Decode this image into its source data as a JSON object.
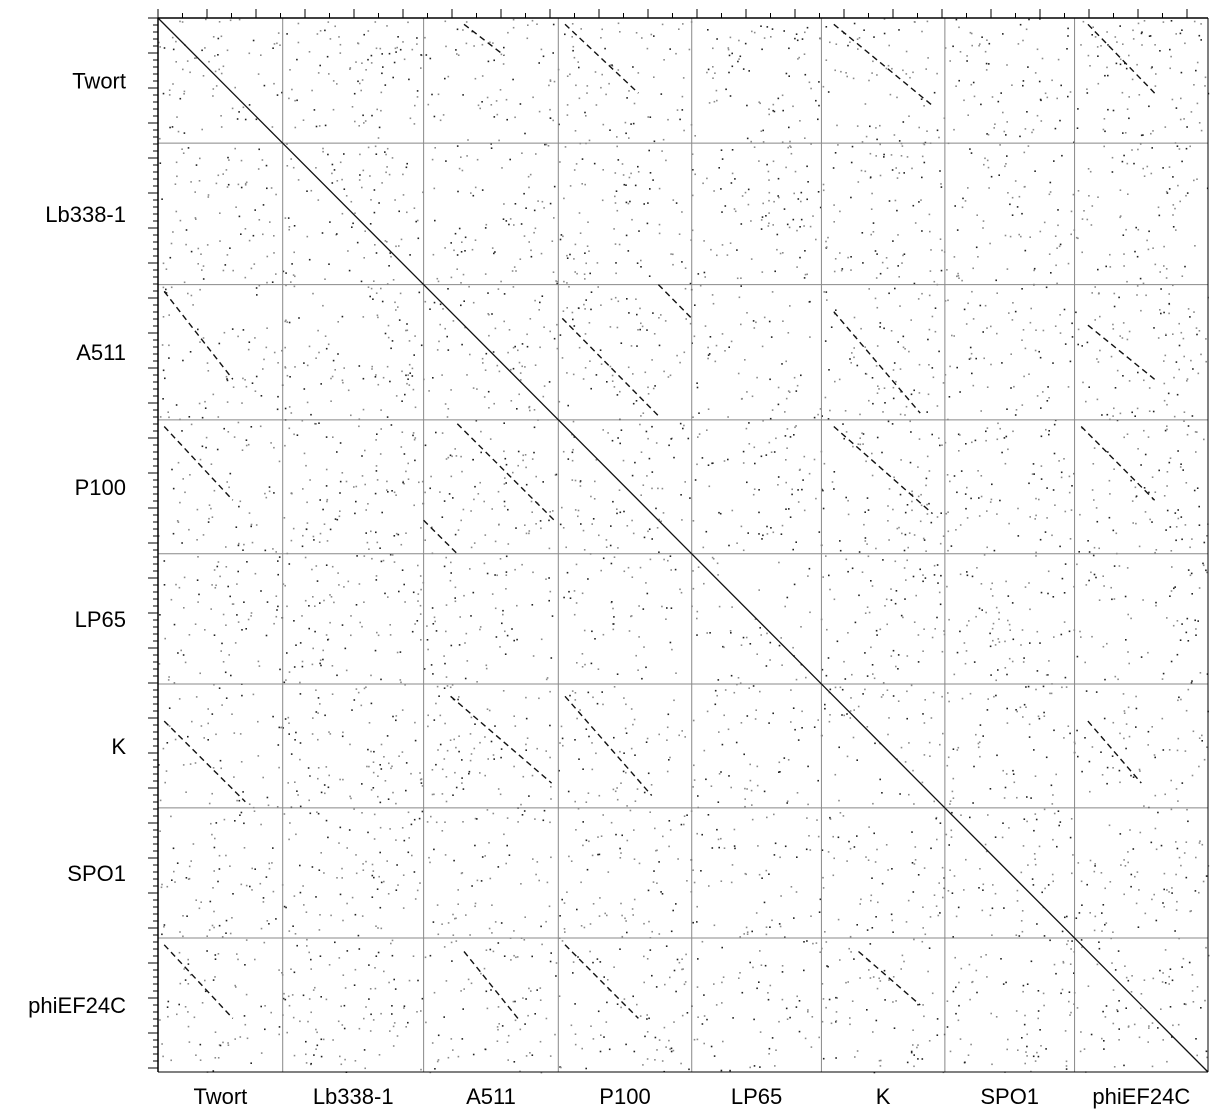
{
  "chart_data": {
    "type": "scatter",
    "title": "",
    "xlabel": "",
    "ylabel": "",
    "grid": true,
    "legend": "none",
    "genomes": [
      "Twort",
      "Lb338-1",
      "A511",
      "P100",
      "LP65",
      "K",
      "SPO1",
      "phiEF24C"
    ],
    "x_tick_labels": [
      "Twort",
      "Lb338-1",
      "A511",
      "P100",
      "LP65",
      "K",
      "SPO1",
      "phiEF24C"
    ],
    "y_tick_labels": [
      "Twort",
      "Lb338-1",
      "A511",
      "P100",
      "LP65",
      "K",
      "SPO1",
      "phiEF24C"
    ],
    "relative_genome_lengths": [
      1.0,
      1.13,
      1.08,
      1.07,
      1.04,
      0.99,
      1.04,
      1.07
    ],
    "similarity_segments": [
      {
        "x": "Twort",
        "y": "Twort",
        "from": [
          0.0,
          0.0
        ],
        "to": [
          1.0,
          1.0
        ]
      },
      {
        "x": "Lb338-1",
        "y": "Lb338-1",
        "from": [
          0.0,
          0.0
        ],
        "to": [
          1.0,
          1.0
        ]
      },
      {
        "x": "A511",
        "y": "A511",
        "from": [
          0.0,
          0.0
        ],
        "to": [
          1.0,
          1.0
        ]
      },
      {
        "x": "P100",
        "y": "P100",
        "from": [
          0.0,
          0.0
        ],
        "to": [
          1.0,
          1.0
        ]
      },
      {
        "x": "LP65",
        "y": "LP65",
        "from": [
          0.0,
          0.0
        ],
        "to": [
          1.0,
          1.0
        ]
      },
      {
        "x": "K",
        "y": "K",
        "from": [
          0.0,
          0.0
        ],
        "to": [
          1.0,
          1.0
        ]
      },
      {
        "x": "SPO1",
        "y": "SPO1",
        "from": [
          0.0,
          0.0
        ],
        "to": [
          1.0,
          1.0
        ]
      },
      {
        "x": "phiEF24C",
        "y": "phiEF24C",
        "from": [
          0.0,
          0.0
        ],
        "to": [
          1.0,
          1.0
        ]
      },
      {
        "x": "A511",
        "y": "Twort",
        "from": [
          0.3,
          0.05
        ],
        "to": [
          0.6,
          0.3
        ]
      },
      {
        "x": "P100",
        "y": "Twort",
        "from": [
          0.05,
          0.05
        ],
        "to": [
          0.6,
          0.6
        ]
      },
      {
        "x": "K",
        "y": "Twort",
        "from": [
          0.1,
          0.05
        ],
        "to": [
          0.9,
          0.7
        ]
      },
      {
        "x": "phiEF24C",
        "y": "Twort",
        "from": [
          0.1,
          0.05
        ],
        "to": [
          0.6,
          0.6
        ]
      },
      {
        "x": "A511",
        "y": "P100",
        "from": [
          0.25,
          0.03
        ],
        "to": [
          0.97,
          0.75
        ]
      },
      {
        "x": "A511",
        "y": "P100",
        "from": [
          0.0,
          0.75
        ],
        "to": [
          0.25,
          1.0
        ]
      },
      {
        "x": "P100",
        "y": "A511",
        "from": [
          0.03,
          0.25
        ],
        "to": [
          0.75,
          0.97
        ]
      },
      {
        "x": "P100",
        "y": "A511",
        "from": [
          0.75,
          0.0
        ],
        "to": [
          1.0,
          0.25
        ]
      },
      {
        "x": "Twort",
        "y": "A511",
        "from": [
          0.05,
          0.05
        ],
        "to": [
          0.6,
          0.7
        ]
      },
      {
        "x": "Twort",
        "y": "P100",
        "from": [
          0.05,
          0.05
        ],
        "to": [
          0.6,
          0.6
        ]
      },
      {
        "x": "Twort",
        "y": "K",
        "from": [
          0.05,
          0.3
        ],
        "to": [
          0.7,
          0.95
        ]
      },
      {
        "x": "K",
        "y": "A511",
        "from": [
          0.1,
          0.2
        ],
        "to": [
          0.8,
          0.95
        ]
      },
      {
        "x": "K",
        "y": "P100",
        "from": [
          0.1,
          0.05
        ],
        "to": [
          0.9,
          0.7
        ]
      },
      {
        "x": "A511",
        "y": "K",
        "from": [
          0.2,
          0.1
        ],
        "to": [
          0.95,
          0.8
        ]
      },
      {
        "x": "P100",
        "y": "K",
        "from": [
          0.05,
          0.1
        ],
        "to": [
          0.7,
          0.9
        ]
      },
      {
        "x": "phiEF24C",
        "y": "A511",
        "from": [
          0.1,
          0.3
        ],
        "to": [
          0.6,
          0.7
        ]
      },
      {
        "x": "phiEF24C",
        "y": "P100",
        "from": [
          0.05,
          0.05
        ],
        "to": [
          0.6,
          0.6
        ]
      },
      {
        "x": "phiEF24C",
        "y": "K",
        "from": [
          0.1,
          0.3
        ],
        "to": [
          0.5,
          0.8
        ]
      },
      {
        "x": "Twort",
        "y": "phiEF24C",
        "from": [
          0.05,
          0.05
        ],
        "to": [
          0.6,
          0.6
        ]
      },
      {
        "x": "A511",
        "y": "phiEF24C",
        "from": [
          0.3,
          0.1
        ],
        "to": [
          0.7,
          0.6
        ]
      },
      {
        "x": "P100",
        "y": "phiEF24C",
        "from": [
          0.05,
          0.05
        ],
        "to": [
          0.6,
          0.6
        ]
      },
      {
        "x": "K",
        "y": "phiEF24C",
        "from": [
          0.3,
          0.1
        ],
        "to": [
          0.8,
          0.5
        ]
      }
    ]
  }
}
